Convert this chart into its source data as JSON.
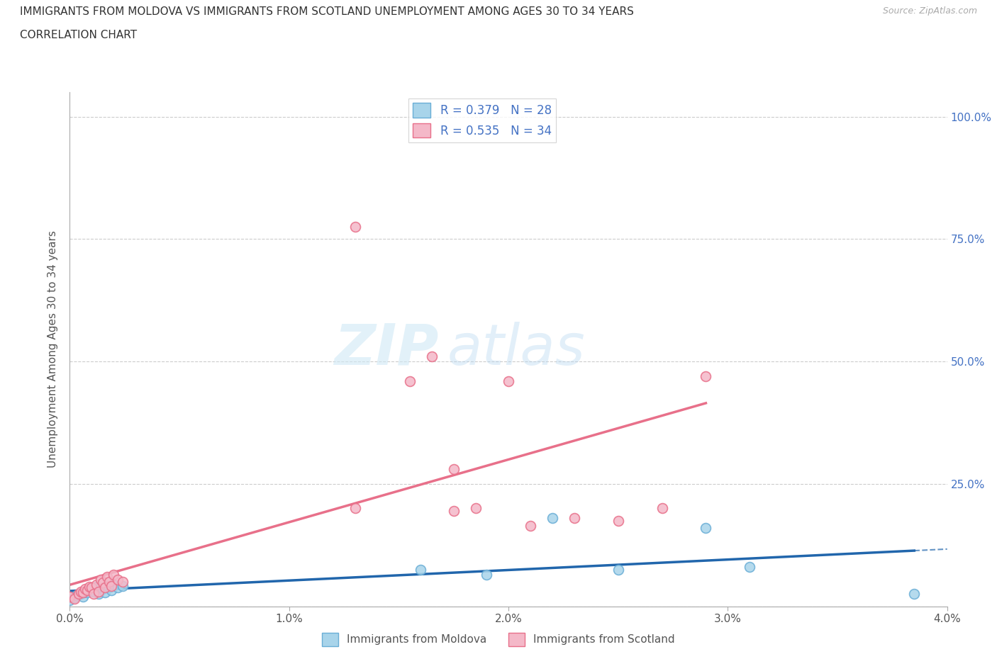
{
  "title_line1": "IMMIGRANTS FROM MOLDOVA VS IMMIGRANTS FROM SCOTLAND UNEMPLOYMENT AMONG AGES 30 TO 34 YEARS",
  "title_line2": "CORRELATION CHART",
  "source": "Source: ZipAtlas.com",
  "ylabel": "Unemployment Among Ages 30 to 34 years",
  "xlim": [
    0.0,
    0.04
  ],
  "ylim": [
    0.0,
    1.05
  ],
  "x_ticks": [
    0.0,
    0.01,
    0.02,
    0.03,
    0.04
  ],
  "x_tick_labels": [
    "0.0%",
    "1.0%",
    "2.0%",
    "3.0%",
    "4.0%"
  ],
  "y_ticks": [
    0.0,
    0.25,
    0.5,
    0.75,
    1.0
  ],
  "y_tick_labels_right": [
    "",
    "25.0%",
    "50.0%",
    "75.0%",
    "100.0%"
  ],
  "moldova_color": "#a8d4ea",
  "scotland_color": "#f4b8c8",
  "moldova_edge": "#6aaed6",
  "scotland_edge": "#e8708a",
  "trendline_moldova_color": "#2166ac",
  "trendline_scotland_color": "#e8708a",
  "watermark_zip": "ZIP",
  "watermark_atlas": "atlas",
  "R_moldova": 0.379,
  "N_moldova": 28,
  "R_scotland": 0.535,
  "N_scotland": 34,
  "moldova_x": [
    0.0,
    0.0002,
    0.0003,
    0.0005,
    0.0006,
    0.0007,
    0.0008,
    0.0009,
    0.001,
    0.0011,
    0.0012,
    0.0013,
    0.0014,
    0.0015,
    0.0016,
    0.0017,
    0.0018,
    0.0019,
    0.002,
    0.0022,
    0.0024,
    0.016,
    0.019,
    0.022,
    0.025,
    0.029,
    0.031,
    0.0385
  ],
  "moldova_y": [
    0.012,
    0.018,
    0.022,
    0.025,
    0.02,
    0.03,
    0.028,
    0.035,
    0.032,
    0.03,
    0.04,
    0.025,
    0.038,
    0.035,
    0.028,
    0.042,
    0.038,
    0.032,
    0.045,
    0.038,
    0.042,
    0.075,
    0.065,
    0.18,
    0.075,
    0.16,
    0.08,
    0.025
  ],
  "scotland_x": [
    0.0,
    0.0002,
    0.0004,
    0.0005,
    0.0006,
    0.0007,
    0.0008,
    0.0009,
    0.001,
    0.0011,
    0.0012,
    0.0013,
    0.0014,
    0.0015,
    0.0016,
    0.0017,
    0.0018,
    0.0019,
    0.002,
    0.0022,
    0.0024,
    0.013,
    0.0155,
    0.0165,
    0.0175,
    0.0185,
    0.02,
    0.021,
    0.023,
    0.025,
    0.027,
    0.029,
    0.013,
    0.0175
  ],
  "scotland_y": [
    0.02,
    0.015,
    0.025,
    0.03,
    0.028,
    0.035,
    0.032,
    0.04,
    0.038,
    0.025,
    0.045,
    0.03,
    0.055,
    0.048,
    0.038,
    0.06,
    0.05,
    0.042,
    0.065,
    0.055,
    0.05,
    0.2,
    0.46,
    0.51,
    0.195,
    0.2,
    0.46,
    0.165,
    0.18,
    0.175,
    0.2,
    0.47,
    0.775,
    0.28
  ]
}
